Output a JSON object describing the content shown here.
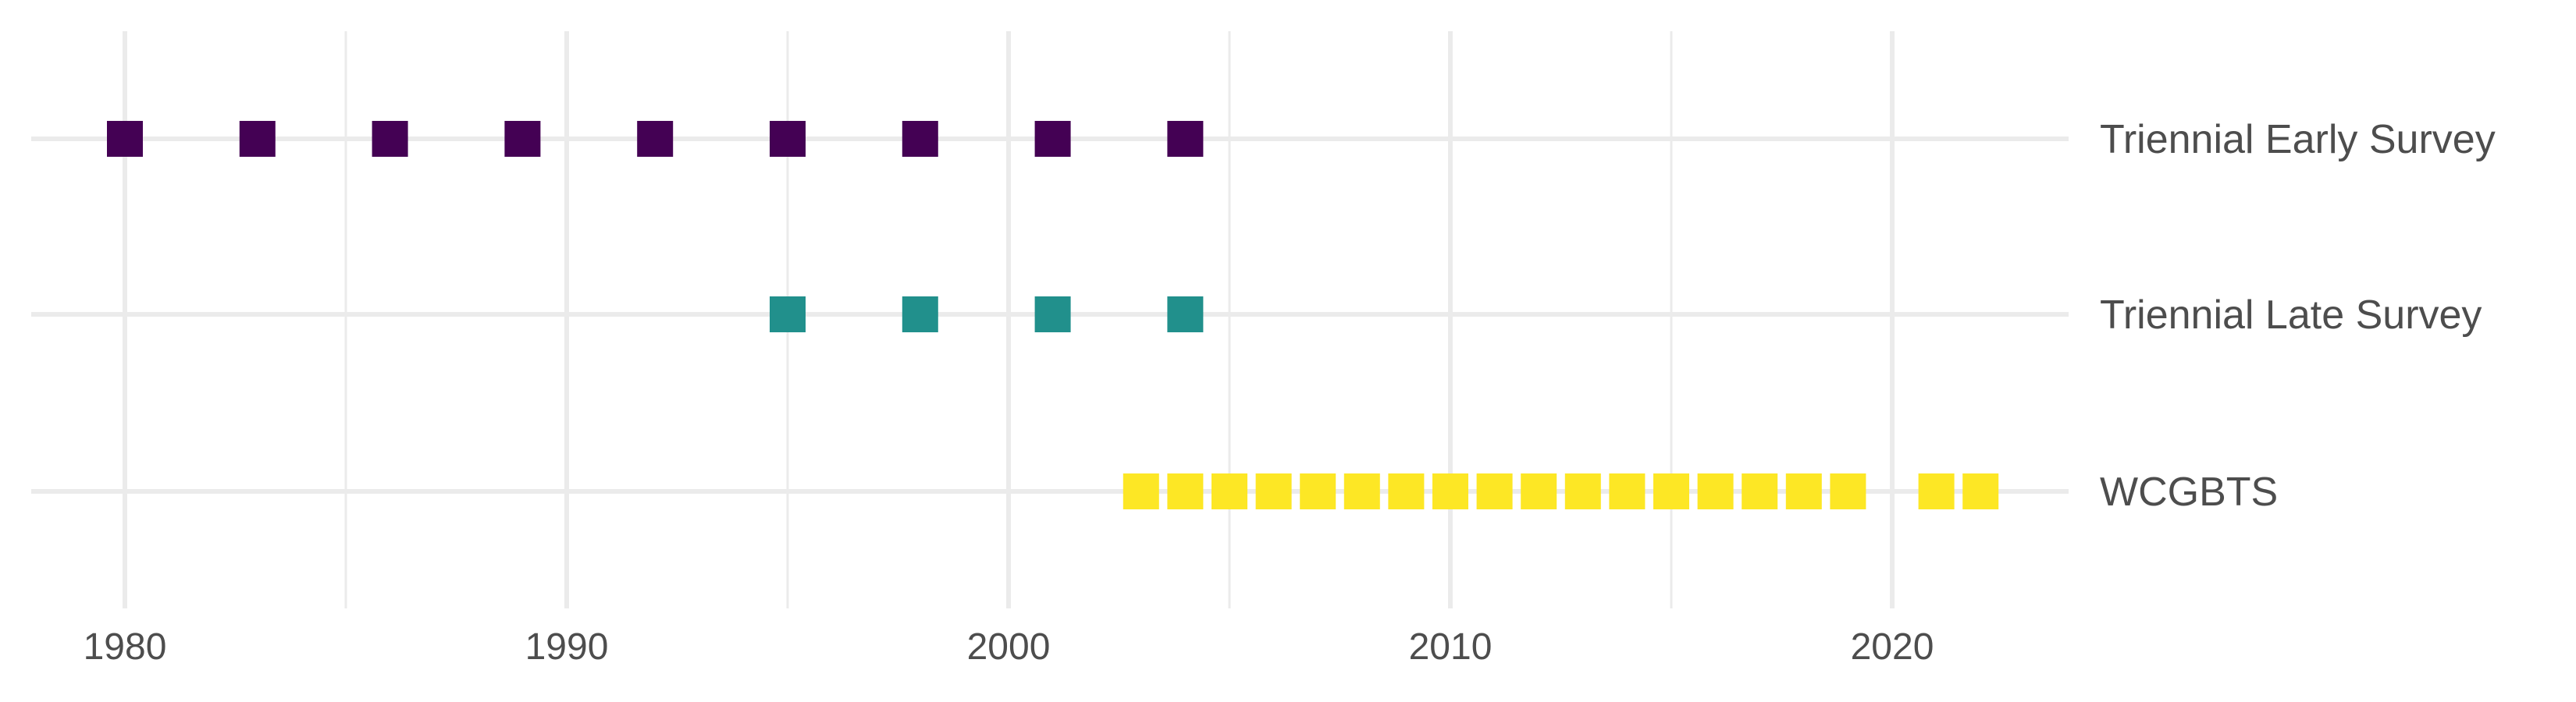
{
  "chart_data": {
    "type": "scatter",
    "title": "",
    "xlabel": "",
    "ylabel": "",
    "xlim": [
      1978,
      2024
    ],
    "x_ticks": [
      1980,
      1990,
      2000,
      2010,
      2020
    ],
    "x_tick_labels": [
      "1980",
      "1990",
      "2000",
      "2010",
      "2020"
    ],
    "grid": true,
    "marker": "square",
    "series": [
      {
        "name": "Triennial Early Survey",
        "color": "#440154",
        "x": [
          1980,
          1983,
          1986,
          1989,
          1992,
          1995,
          1998,
          2001,
          2004
        ]
      },
      {
        "name": "Triennial Late Survey",
        "color": "#21908C",
        "x": [
          1995,
          1998,
          2001,
          2004
        ]
      },
      {
        "name": "WCGBTS",
        "color": "#FDE725",
        "x": [
          2003,
          2004,
          2005,
          2006,
          2007,
          2008,
          2009,
          2010,
          2011,
          2012,
          2013,
          2014,
          2015,
          2016,
          2017,
          2018,
          2019,
          2021,
          2022
        ]
      }
    ],
    "grid_color": "#ebebeb"
  }
}
